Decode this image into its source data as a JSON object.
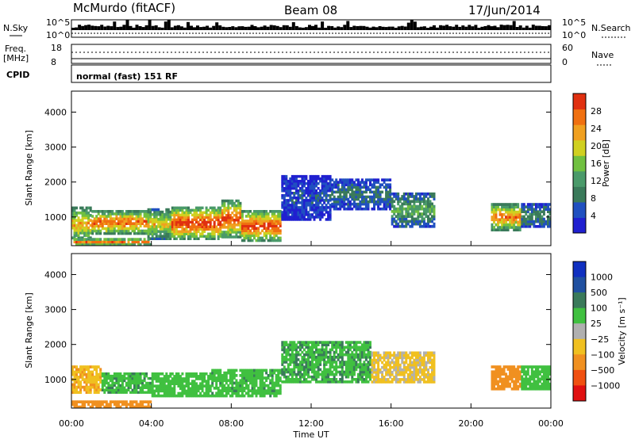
{
  "header": {
    "station": "McMurdo (fitACF)",
    "beam": "Beam 08",
    "date": "17/Jun/2014"
  },
  "summary_panels": {
    "nsky_label": "N.Sky",
    "nsky_ticks": [
      "10^5",
      "10^0"
    ],
    "nsearch_label": "N.Search",
    "nsearch_ticks": [
      "10^5",
      "10^0"
    ],
    "freq_label": "Freq.",
    "freq_unit": "[MHz]",
    "freq_ticks": [
      "18",
      "8"
    ],
    "nave_label": "Nave",
    "nave_ticks": [
      "60",
      "0"
    ],
    "cpid_label": "CPID",
    "cpid_value": "normal (fast) 151 RF"
  },
  "colors": {
    "power_scale": [
      "#2020d0",
      "#2050c0",
      "#3a7a5a",
      "#4a9a6a",
      "#70c040",
      "#d0d020",
      "#f0a020",
      "#f07010",
      "#e03010"
    ],
    "velocity_scale": [
      "#1030c0",
      "#2050a0",
      "#3a7a5a",
      "#40c040",
      "#b0b0b0",
      "#f0c020",
      "#f09020",
      "#f05010",
      "#e01010"
    ]
  },
  "chart_data": [
    {
      "type": "heatmap",
      "quantity": "power",
      "ylabel": "Slant Range [km]",
      "ylim": [
        180,
        4600
      ],
      "yticks": [
        "1000",
        "2000",
        "3000",
        "4000"
      ],
      "xlim": [
        0,
        24
      ],
      "colorbar_label": "Power [dB]",
      "colorbar_ticks": [
        "4",
        "8",
        "12",
        "16",
        "20",
        "24",
        "28"
      ],
      "colorbar_range": [
        0,
        32
      ],
      "bands": [
        {
          "t0": 0.0,
          "t1": 1.0,
          "r0": 300,
          "r1": 1300,
          "v": 22
        },
        {
          "t0": 1.0,
          "t1": 3.8,
          "r0": 500,
          "r1": 1200,
          "v": 26
        },
        {
          "t0": 3.8,
          "t1": 5.0,
          "r0": 350,
          "r1": 1250,
          "v": 20
        },
        {
          "t0": 5.0,
          "t1": 7.5,
          "r0": 350,
          "r1": 1300,
          "v": 29
        },
        {
          "t0": 7.5,
          "t1": 8.5,
          "r0": 400,
          "r1": 1500,
          "v": 27
        },
        {
          "t0": 8.5,
          "t1": 10.5,
          "r0": 300,
          "r1": 1200,
          "v": 28
        },
        {
          "t0": 10.5,
          "t1": 13.0,
          "r0": 900,
          "r1": 2200,
          "v": 5
        },
        {
          "t0": 13.0,
          "t1": 16.0,
          "r0": 1200,
          "r1": 2100,
          "v": 8
        },
        {
          "t0": 16.0,
          "t1": 18.2,
          "r0": 700,
          "r1": 1700,
          "v": 13
        },
        {
          "t0": 21.0,
          "t1": 22.5,
          "r0": 600,
          "r1": 1400,
          "v": 24
        },
        {
          "t0": 22.5,
          "t1": 24.0,
          "r0": 700,
          "r1": 1400,
          "v": 10
        },
        {
          "t0": 0.0,
          "t1": 4.0,
          "r0": 180,
          "r1": 400,
          "v": 24
        }
      ]
    },
    {
      "type": "heatmap",
      "quantity": "velocity",
      "ylabel": "Slant Range [km]",
      "ylim": [
        180,
        4600
      ],
      "yticks": [
        "1000",
        "2000",
        "3000",
        "4000"
      ],
      "xlim": [
        0,
        24
      ],
      "xlabel": "Time UT",
      "xticks": [
        "00:00",
        "04:00",
        "08:00",
        "12:00",
        "16:00",
        "20:00",
        "00:00"
      ],
      "colorbar_label": "Velocity [m s⁻¹]",
      "colorbar_ticks": [
        "1000",
        "500",
        "100",
        "25",
        "−25",
        "−100",
        "−500",
        "−1000"
      ],
      "bands": [
        {
          "t0": 0.0,
          "t1": 1.5,
          "r0": 600,
          "r1": 1400,
          "v": -80
        },
        {
          "t0": 1.5,
          "t1": 4.0,
          "r0": 600,
          "r1": 1200,
          "v": 80
        },
        {
          "t0": 4.0,
          "t1": 7.0,
          "r0": 500,
          "r1": 1200,
          "v": 60
        },
        {
          "t0": 7.0,
          "t1": 10.5,
          "r0": 500,
          "r1": 1300,
          "v": 70
        },
        {
          "t0": 10.5,
          "t1": 15.0,
          "r0": 900,
          "r1": 2100,
          "v": 80
        },
        {
          "t0": 15.0,
          "t1": 18.2,
          "r0": 900,
          "r1": 1800,
          "v": -40
        },
        {
          "t0": 21.0,
          "t1": 22.5,
          "r0": 700,
          "r1": 1400,
          "v": -200
        },
        {
          "t0": 22.5,
          "t1": 24.0,
          "r0": 700,
          "r1": 1400,
          "v": 60
        },
        {
          "t0": 0.0,
          "t1": 4.0,
          "r0": 180,
          "r1": 400,
          "v": -300
        }
      ]
    }
  ]
}
